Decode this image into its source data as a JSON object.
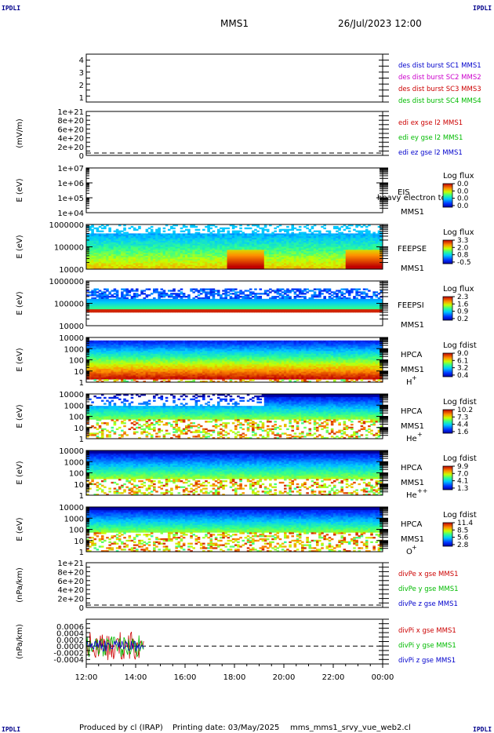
{
  "header": {
    "spacecraft": "MMS1",
    "datetime": "26/Jul/2023 12:00",
    "corner_tl": "IPDLI",
    "corner_tr": "IPDLI",
    "corner_bl": "IPDLI",
    "corner_br": "IPDLI"
  },
  "footer": {
    "produced_by": "Produced by cl (IRAP)",
    "printing_date": "Printing date: 03/May/2025",
    "script_name": "mms_mms1_srvy_vue_web2.cl"
  },
  "time_axis": {
    "ticks": [
      "12:00",
      "14:00",
      "16:00",
      "18:00",
      "20:00",
      "22:00",
      "00:00"
    ]
  },
  "panels": [
    {
      "id": "dist",
      "ylabel": "",
      "yticks": [
        "4",
        "3",
        "2",
        "1"
      ],
      "legend": [
        {
          "text": "des dist burst SC1 MMS1",
          "color": "#0000cc"
        },
        {
          "text": "des dist burst SC2 MMS2",
          "color": "#cc00cc"
        },
        {
          "text": "des dist burst SC3 MMS3",
          "color": "#cc0000"
        },
        {
          "text": "des dist burst SC4 MMS4",
          "color": "#00bb00"
        }
      ]
    },
    {
      "id": "edi",
      "ylabel": "(mV/m)",
      "yticks": [
        "1e+21",
        "8e+20",
        "6e+20",
        "4e+20",
        "2e+20",
        "0"
      ],
      "legend": [
        {
          "text": "edi ex gse l2 MMS1",
          "color": "#cc0000"
        },
        {
          "text": "edi ey gse l2 MMS1",
          "color": "#00bb00"
        },
        {
          "text": "edi ez gse l2 MMS1",
          "color": "#0000cc"
        }
      ]
    },
    {
      "id": "eis",
      "ylabel": "E (eV)",
      "yticks": [
        "1e+07",
        "1e+06",
        "1e+05",
        "1e+04"
      ],
      "instrument": "EIS",
      "instrument_note": "heavy electron to",
      "sc": "MMS1",
      "scale_title": "Log flux",
      "scale_values": [
        "0.0",
        "0.0",
        "0.0",
        "0.0"
      ]
    },
    {
      "id": "feepse",
      "ylabel": "E (eV)",
      "yticks": [
        "1000000",
        "100000",
        "10000"
      ],
      "instrument": "FEEPSE",
      "sc": "MMS1",
      "scale_title": "Log flux",
      "scale_values": [
        "3.3",
        "2.0",
        "0.8",
        "-0.5"
      ]
    },
    {
      "id": "feepsi",
      "ylabel": "E (eV)",
      "yticks": [
        "1000000",
        "100000",
        "10000"
      ],
      "instrument": "FEEPSI",
      "sc": "MMS1",
      "scale_title": "Log flux",
      "scale_values": [
        "2.3",
        "1.6",
        "0.9",
        "0.2"
      ]
    },
    {
      "id": "hpca-h",
      "ylabel": "E (eV)",
      "yticks": [
        "10000",
        "1000",
        "100",
        "10",
        "1"
      ],
      "instrument": "HPCA",
      "sc": "MMS1",
      "species": "H",
      "species_charge": "+",
      "scale_title": "Log fdist",
      "scale_values": [
        "9.0",
        "6.1",
        "3.2",
        "0.4"
      ]
    },
    {
      "id": "hpca-he",
      "ylabel": "E (eV)",
      "yticks": [
        "10000",
        "1000",
        "100",
        "10",
        "1"
      ],
      "instrument": "HPCA",
      "sc": "MMS1",
      "species": "He",
      "species_charge": "+",
      "scale_title": "Log fdist",
      "scale_values": [
        "10.2",
        "7.3",
        "4.4",
        "1.6"
      ]
    },
    {
      "id": "hpca-hepp",
      "ylabel": "E (eV)",
      "yticks": [
        "10000",
        "1000",
        "100",
        "10",
        "1"
      ],
      "instrument": "HPCA",
      "sc": "MMS1",
      "species": "He",
      "species_charge": "++",
      "scale_title": "Log fdist",
      "scale_values": [
        "9.9",
        "7.0",
        "4.1",
        "1.3"
      ]
    },
    {
      "id": "hpca-o",
      "ylabel": "E (eV)",
      "yticks": [
        "10000",
        "1000",
        "100",
        "10",
        "1"
      ],
      "instrument": "HPCA",
      "sc": "MMS1",
      "species": "O",
      "species_charge": "+",
      "scale_title": "Log fdist",
      "scale_values": [
        "11.4",
        "8.5",
        "5.6",
        "2.8"
      ]
    },
    {
      "id": "divpe",
      "ylabel": "(nPa/km)",
      "yticks": [
        "1e+21",
        "8e+20",
        "6e+20",
        "4e+20",
        "2e+20",
        "0"
      ],
      "legend": [
        {
          "text": "divPe x gse MMS1",
          "color": "#cc0000"
        },
        {
          "text": "divPe y gse MMS1",
          "color": "#00bb00"
        },
        {
          "text": "divPe z gse MMS1",
          "color": "#0000cc"
        }
      ]
    },
    {
      "id": "divpi",
      "ylabel": "(nPa/km)",
      "yticks": [
        "0.0006",
        "0.0004",
        "0.0002",
        "0.0000",
        "-0.0002",
        "-0.0004"
      ],
      "legend": [
        {
          "text": "divPi x gse MMS1",
          "color": "#cc0000"
        },
        {
          "text": "divPi y gse MMS1",
          "color": "#00bb00"
        },
        {
          "text": "divPi z gse MMS1",
          "color": "#0000cc"
        }
      ]
    }
  ],
  "chart_data": [
    {
      "type": "line",
      "title": "des dist burst",
      "ylim": [
        0.5,
        4.5
      ],
      "xlim": [
        "12:00",
        "00:00"
      ],
      "series": []
    },
    {
      "type": "line",
      "ylabel": "(mV/m)",
      "ylim": [
        0,
        1e+21
      ],
      "zero_line": true,
      "series": []
    },
    {
      "type": "heatmap",
      "ylabel": "E (eV)",
      "yscale": "log",
      "ylim": [
        10000.0,
        10000000.0
      ],
      "colorbar": [
        0.0,
        0.0,
        0.0,
        0.0
      ],
      "filled": false
    },
    {
      "type": "heatmap",
      "ylabel": "E (eV)",
      "yscale": "log",
      "ylim": [
        10000.0,
        1000000.0
      ],
      "colorbar": [
        3.3,
        2.0,
        0.8,
        -0.5
      ],
      "data_end": "00:00",
      "enhancements": [
        [
          "17:50",
          "19:15"
        ],
        [
          "22:15",
          "00:00"
        ]
      ]
    },
    {
      "type": "heatmap",
      "ylabel": "E (eV)",
      "yscale": "log",
      "ylim": [
        10000.0,
        1000000.0
      ],
      "colorbar": [
        2.3,
        1.6,
        0.9,
        0.2
      ],
      "data_end": "00:00"
    },
    {
      "type": "heatmap",
      "ylabel": "E (eV)",
      "yscale": "log",
      "ylim": [
        1,
        10000.0
      ],
      "colorbar": [
        9.0,
        6.1,
        3.2,
        0.4
      ],
      "species": "H+"
    },
    {
      "type": "heatmap",
      "ylabel": "E (eV)",
      "yscale": "log",
      "ylim": [
        1,
        10000.0
      ],
      "colorbar": [
        10.2,
        7.3,
        4.4,
        1.6
      ],
      "species": "He+"
    },
    {
      "type": "heatmap",
      "ylabel": "E (eV)",
      "yscale": "log",
      "ylim": [
        1,
        10000.0
      ],
      "colorbar": [
        9.9,
        7.0,
        4.1,
        1.3
      ],
      "species": "He++"
    },
    {
      "type": "heatmap",
      "ylabel": "E (eV)",
      "yscale": "log",
      "ylim": [
        1,
        10000.0
      ],
      "colorbar": [
        11.4,
        8.5,
        5.6,
        2.8
      ],
      "species": "O+"
    },
    {
      "type": "line",
      "ylabel": "(nPa/km)",
      "ylim": [
        0,
        1e+21
      ],
      "zero_line": true,
      "series": []
    },
    {
      "type": "line",
      "ylabel": "(nPa/km)",
      "ylim": [
        -0.0005,
        0.0007
      ],
      "zero_line": true,
      "data_end": "14:20",
      "series": [
        {
          "name": "divPi x gse MMS1",
          "range": [
            -0.0004,
            0.0005
          ]
        },
        {
          "name": "divPi y gse MMS1",
          "range": [
            -0.0003,
            0.0004
          ]
        },
        {
          "name": "divPi z gse MMS1",
          "range": [
            -0.0002,
            0.0002
          ]
        }
      ]
    }
  ]
}
